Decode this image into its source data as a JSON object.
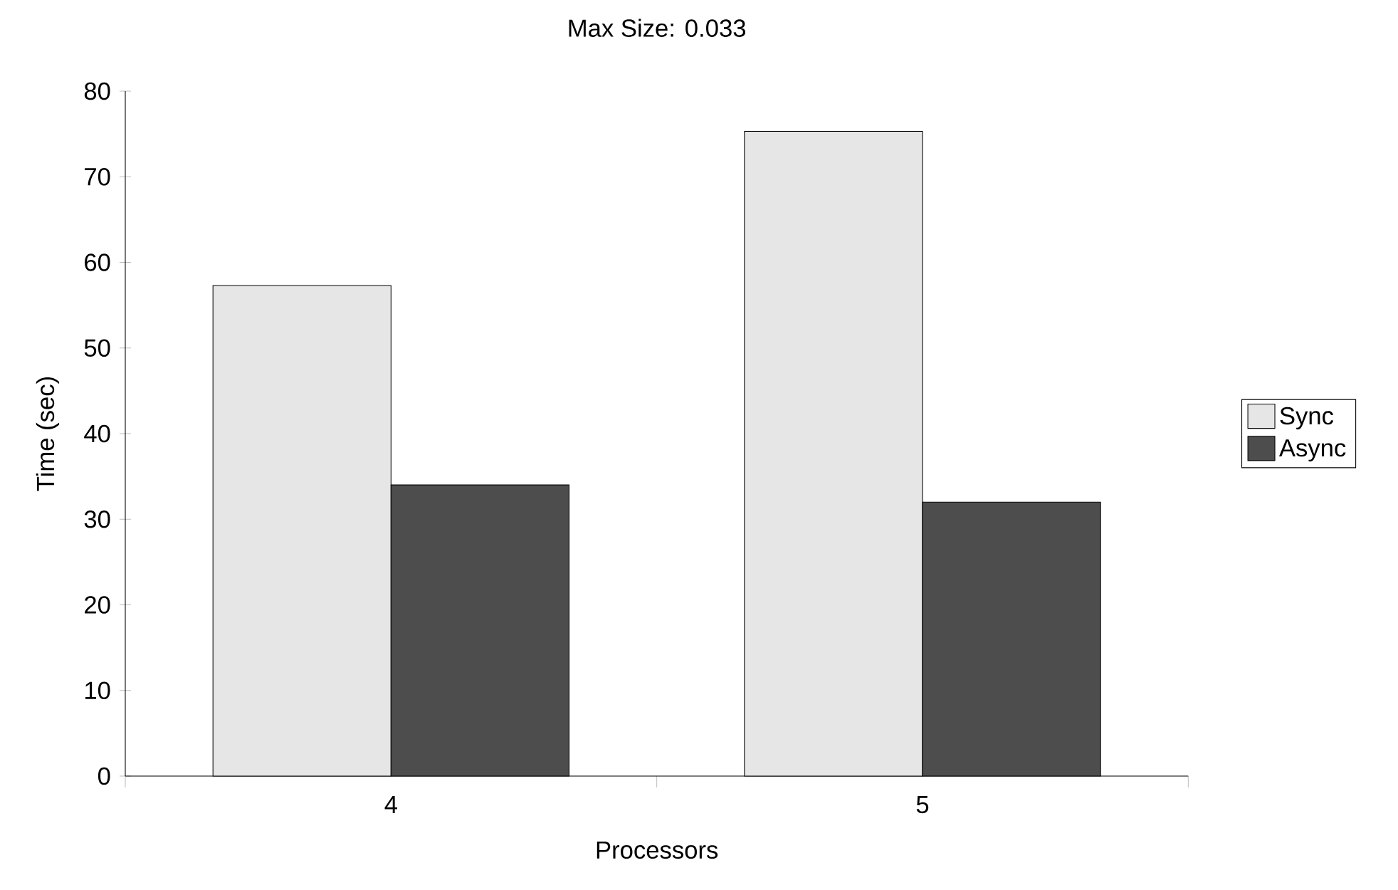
{
  "chart_data": {
    "type": "bar",
    "title": "Max Size: 0.033",
    "xlabel": "Processors",
    "ylabel": "Time (sec)",
    "categories": [
      "4",
      "5"
    ],
    "series": [
      {
        "name": "Sync",
        "color": "#e6e6e6",
        "values": [
          57.3,
          75.3
        ]
      },
      {
        "name": "Async",
        "color": "#4d4d4d",
        "values": [
          34,
          32
        ]
      }
    ],
    "ylim": [
      0,
      80
    ],
    "yticks": [
      0,
      10,
      20,
      30,
      40,
      50,
      60,
      70,
      80
    ],
    "grid": false,
    "legend": "right"
  }
}
